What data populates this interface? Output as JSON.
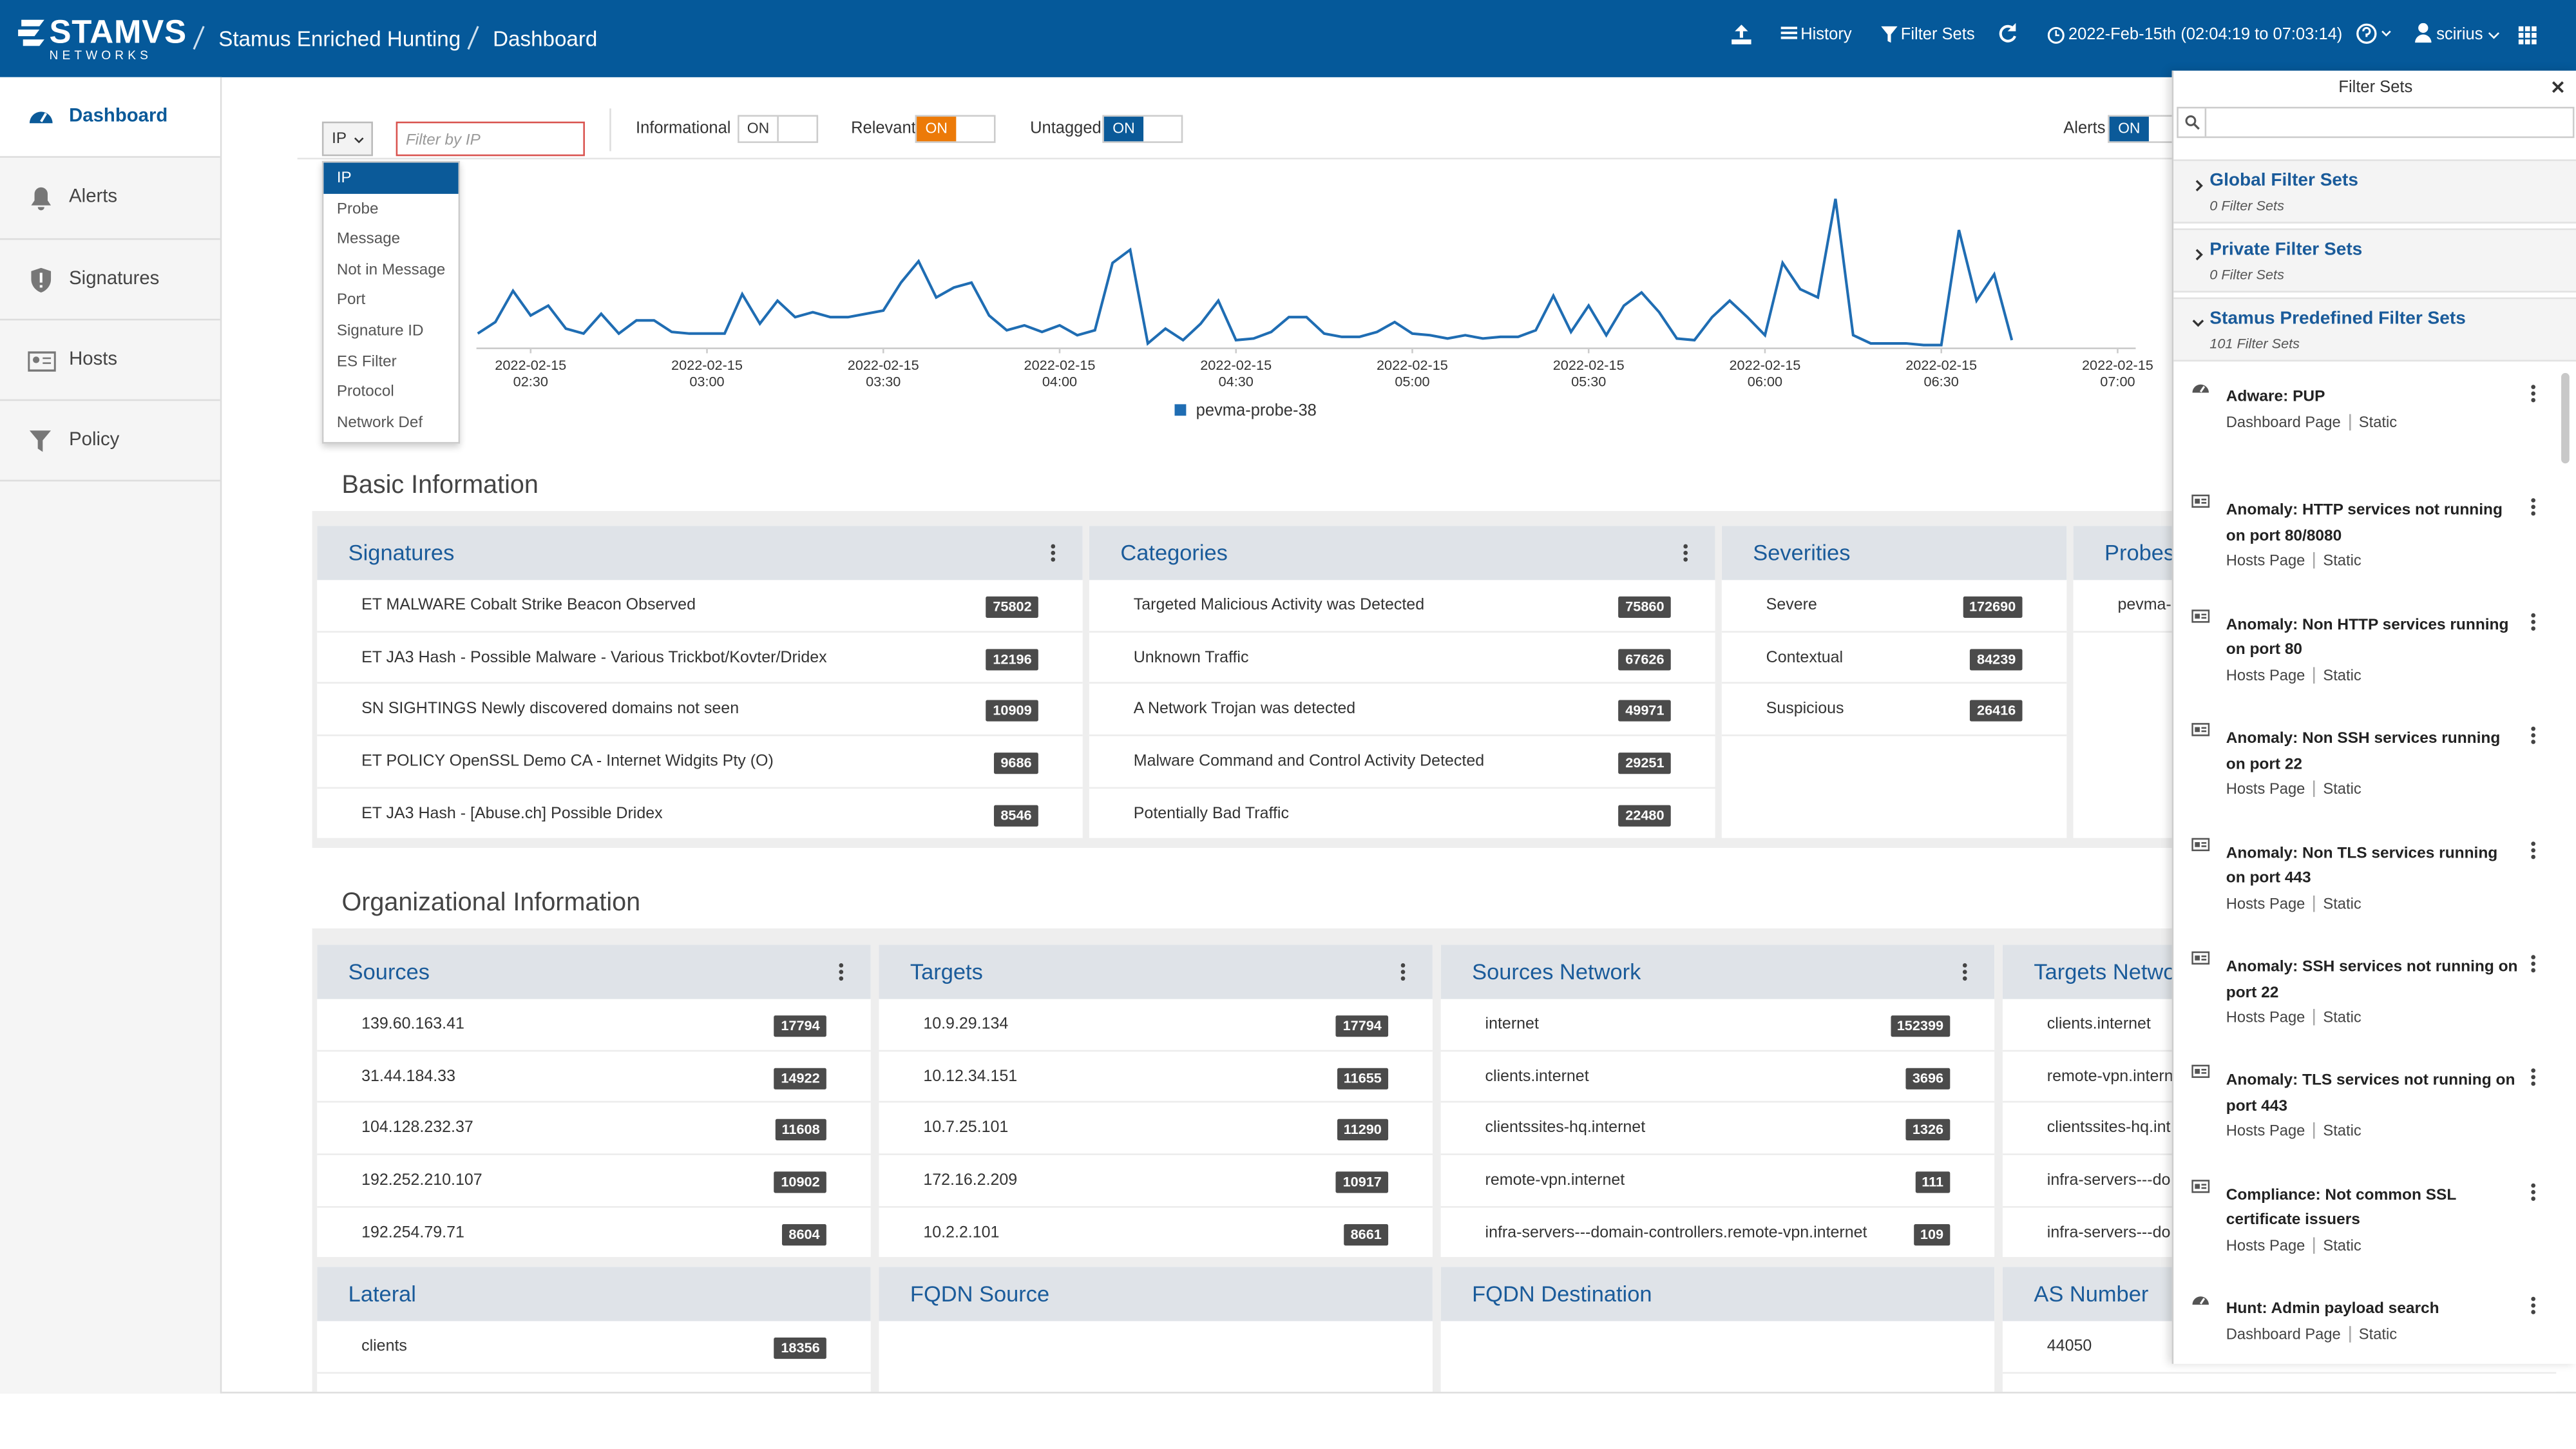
{
  "header": {
    "logo": "STAMVS",
    "logo_sub": "NETWORKS",
    "breadcrumb": [
      "Stamus Enriched Hunting",
      "Dashboard"
    ],
    "actions": [
      "History",
      "Filter Sets"
    ],
    "time_range": "2022-Feb-15th (02:04:19 to 07:03:14)",
    "user": "scirius"
  },
  "sidebar": {
    "items": [
      "Dashboard",
      "Alerts",
      "Signatures",
      "Hosts",
      "Policy"
    ]
  },
  "filter_bar": {
    "field": "IP",
    "placeholder": "Filter by IP",
    "toggles": [
      {
        "label": "Informational",
        "state": "ON",
        "color": "#ffffff"
      },
      {
        "label": "Relevant",
        "state": "ON",
        "color": "#ec7a08"
      },
      {
        "label": "Untagged",
        "state": "ON",
        "color": "#0b5a99"
      },
      {
        "label": "Alerts",
        "state": "ON",
        "color": "#0b5a99"
      }
    ]
  },
  "dropdown": {
    "options": [
      "IP",
      "Probe",
      "Message",
      "Not in Message",
      "Port",
      "Signature ID",
      "ES Filter",
      "Protocol",
      "Network Def"
    ]
  },
  "chart_data": {
    "type": "line",
    "x": [
      "2022-02-15 02:21",
      "2022-02-15 02:24",
      "2022-02-15 02:27",
      "2022-02-15 02:30",
      "2022-02-15 02:33",
      "2022-02-15 02:36",
      "2022-02-15 02:39",
      "2022-02-15 02:42",
      "2022-02-15 02:45",
      "2022-02-15 02:48",
      "2022-02-15 02:51",
      "2022-02-15 02:54",
      "2022-02-15 02:57",
      "2022-02-15 03:00",
      "2022-02-15 03:03",
      "2022-02-15 03:06",
      "2022-02-15 03:09",
      "2022-02-15 03:12",
      "2022-02-15 03:15",
      "2022-02-15 03:18",
      "2022-02-15 03:21",
      "2022-02-15 03:24",
      "2022-02-15 03:27",
      "2022-02-15 03:30",
      "2022-02-15 03:33",
      "2022-02-15 03:36",
      "2022-02-15 03:39",
      "2022-02-15 03:42",
      "2022-02-15 03:45",
      "2022-02-15 03:48",
      "2022-02-15 03:51",
      "2022-02-15 03:54",
      "2022-02-15 03:57",
      "2022-02-15 04:00",
      "2022-02-15 04:03",
      "2022-02-15 04:06",
      "2022-02-15 04:09",
      "2022-02-15 04:12",
      "2022-02-15 04:15",
      "2022-02-15 04:18",
      "2022-02-15 04:21",
      "2022-02-15 04:24",
      "2022-02-15 04:27",
      "2022-02-15 04:30",
      "2022-02-15 04:33",
      "2022-02-15 04:36",
      "2022-02-15 04:39",
      "2022-02-15 04:42",
      "2022-02-15 04:45",
      "2022-02-15 04:48",
      "2022-02-15 04:51",
      "2022-02-15 04:54",
      "2022-02-15 04:57",
      "2022-02-15 05:00",
      "2022-02-15 05:03",
      "2022-02-15 05:06",
      "2022-02-15 05:09",
      "2022-02-15 05:12",
      "2022-02-15 05:15",
      "2022-02-15 05:18",
      "2022-02-15 05:21",
      "2022-02-15 05:24",
      "2022-02-15 05:27",
      "2022-02-15 05:30",
      "2022-02-15 05:33",
      "2022-02-15 05:36",
      "2022-02-15 05:39",
      "2022-02-15 05:42",
      "2022-02-15 05:45",
      "2022-02-15 05:48",
      "2022-02-15 05:51",
      "2022-02-15 05:54",
      "2022-02-15 05:57",
      "2022-02-15 06:00",
      "2022-02-15 06:03",
      "2022-02-15 06:06",
      "2022-02-15 06:09",
      "2022-02-15 06:12",
      "2022-02-15 06:15",
      "2022-02-15 06:18",
      "2022-02-15 06:21",
      "2022-02-15 06:24",
      "2022-02-15 06:27",
      "2022-02-15 06:30",
      "2022-02-15 06:33",
      "2022-02-15 06:36",
      "2022-02-15 06:39",
      "2022-02-15 06:42"
    ],
    "xticks": [
      "2022-02-15 02:30",
      "2022-02-15 03:00",
      "2022-02-15 03:30",
      "2022-02-15 04:00",
      "2022-02-15 04:30",
      "2022-02-15 05:00",
      "2022-02-15 05:30",
      "2022-02-15 06:00",
      "2022-02-15 06:30",
      "2022-02-15 07:00"
    ],
    "series": [
      {
        "name": "pevma-probe-38",
        "color": "#1f6db3",
        "values": [
          9,
          16,
          35,
          20,
          26,
          12,
          9,
          21,
          9,
          17,
          17,
          10,
          9,
          9,
          9,
          33,
          15,
          29,
          19,
          22,
          19,
          19,
          21,
          23,
          40,
          53,
          31,
          37,
          40,
          20,
          11,
          14,
          10,
          14,
          8,
          11,
          52,
          60,
          3,
          12,
          5,
          15,
          29,
          5,
          6,
          10,
          19,
          19,
          9,
          7,
          7,
          10,
          16,
          9,
          8,
          6,
          8,
          6,
          7,
          7,
          11,
          32,
          10,
          26,
          8,
          26,
          34,
          22,
          6,
          5,
          19,
          29,
          19,
          8,
          52,
          36,
          31,
          91,
          8,
          3,
          3,
          3,
          2,
          2,
          72,
          29,
          45,
          5
        ]
      }
    ]
  },
  "basic_information": {
    "title": "Basic Information",
    "panels": [
      {
        "title": "Signatures",
        "rows": [
          {
            "label": "ET MALWARE Cobalt Strike Beacon Observed",
            "count": 75802
          },
          {
            "label": "ET JA3 Hash - Possible Malware - Various Trickbot/Kovter/Dridex",
            "count": 12196
          },
          {
            "label": "SN SIGHTINGS Newly discovered domains not seen",
            "count": 10909
          },
          {
            "label": "ET POLICY OpenSSL Demo CA - Internet Widgits Pty (O)",
            "count": 9686
          },
          {
            "label": "ET JA3 Hash - [Abuse.ch] Possible Dridex",
            "count": 8546
          }
        ]
      },
      {
        "title": "Categories",
        "rows": [
          {
            "label": "Targeted Malicious Activity was Detected",
            "count": 75860
          },
          {
            "label": "Unknown Traffic",
            "count": 67626
          },
          {
            "label": "A Network Trojan was detected",
            "count": 49971
          },
          {
            "label": "Malware Command and Control Activity Detected",
            "count": 29251
          },
          {
            "label": "Potentially Bad Traffic",
            "count": 22480
          }
        ]
      },
      {
        "title": "Severities",
        "rows": [
          {
            "label": "Severe",
            "count": 172690
          },
          {
            "label": "Contextual",
            "count": 84239
          },
          {
            "label": "Suspicious",
            "count": 26416
          }
        ]
      },
      {
        "title": "Probes",
        "rows": [
          {
            "label": "pevma-"
          }
        ]
      }
    ]
  },
  "organizational_information": {
    "title": "Organizational Information",
    "panels": [
      {
        "title": "Sources",
        "rows": [
          {
            "label": "139.60.163.41",
            "count": 17794
          },
          {
            "label": "31.44.184.33",
            "count": 14922
          },
          {
            "label": "104.128.232.37",
            "count": 11608
          },
          {
            "label": "192.252.210.107",
            "count": 10902
          },
          {
            "label": "192.254.79.71",
            "count": 8604
          }
        ]
      },
      {
        "title": "Targets",
        "rows": [
          {
            "label": "10.9.29.134",
            "count": 17794
          },
          {
            "label": "10.12.34.151",
            "count": 11655
          },
          {
            "label": "10.7.25.101",
            "count": 11290
          },
          {
            "label": "172.16.2.209",
            "count": 10917
          },
          {
            "label": "10.2.2.101",
            "count": 8661
          }
        ]
      },
      {
        "title": "Sources Network",
        "rows": [
          {
            "label": "internet",
            "count": 152399
          },
          {
            "label": "clients.internet",
            "count": 3696
          },
          {
            "label": "clientssites-hq.internet",
            "count": 1326
          },
          {
            "label": "remote-vpn.internet",
            "count": 111
          },
          {
            "label": "infra-servers---domain-controllers.remote-vpn.internet",
            "count": 109
          }
        ]
      },
      {
        "title": "Targets Netwo",
        "rows": [
          {
            "label": "clients.internet"
          },
          {
            "label": "remote-vpn.intern"
          },
          {
            "label": "clientssites-hq.int"
          },
          {
            "label": "infra-servers---do"
          },
          {
            "label": "infra-servers---do"
          }
        ]
      },
      {
        "title": "Lateral",
        "rows": [
          {
            "label": "clients",
            "count": 18356
          }
        ]
      },
      {
        "title": "FQDN Source",
        "rows": []
      },
      {
        "title": "FQDN Destination",
        "rows": []
      },
      {
        "title": "AS Number",
        "rows": [
          {
            "label": "44050"
          }
        ]
      }
    ]
  },
  "filter_sets": {
    "title": "Filter Sets",
    "groups": [
      {
        "title": "Global Filter Sets",
        "count": "0 Filter Sets"
      },
      {
        "title": "Private Filter Sets",
        "count": "0 Filter Sets"
      },
      {
        "title": "Stamus Predefined Filter Sets",
        "count": "101 Filter Sets"
      }
    ],
    "items": [
      {
        "name": "Adware: PUP",
        "page": "Dashboard Page",
        "kind": "Static"
      },
      {
        "name": "Anomaly: HTTP services not running on port 80/8080",
        "page": "Hosts Page",
        "kind": "Static"
      },
      {
        "name": "Anomaly: Non HTTP services running on port 80",
        "page": "Hosts Page",
        "kind": "Static"
      },
      {
        "name": "Anomaly: Non SSH services running on port 22",
        "page": "Hosts Page",
        "kind": "Static"
      },
      {
        "name": "Anomaly: Non TLS services running on port 443",
        "page": "Hosts Page",
        "kind": "Static"
      },
      {
        "name": "Anomaly: SSH services not running on port 22",
        "page": "Hosts Page",
        "kind": "Static"
      },
      {
        "name": "Anomaly: TLS services not running on port 443",
        "page": "Hosts Page",
        "kind": "Static"
      },
      {
        "name": "Compliance: Not common SSL certificate issuers",
        "page": "Hosts Page",
        "kind": "Static"
      },
      {
        "name": "Hunt: Admin payload search",
        "page": "Dashboard Page",
        "kind": "Static"
      }
    ]
  }
}
